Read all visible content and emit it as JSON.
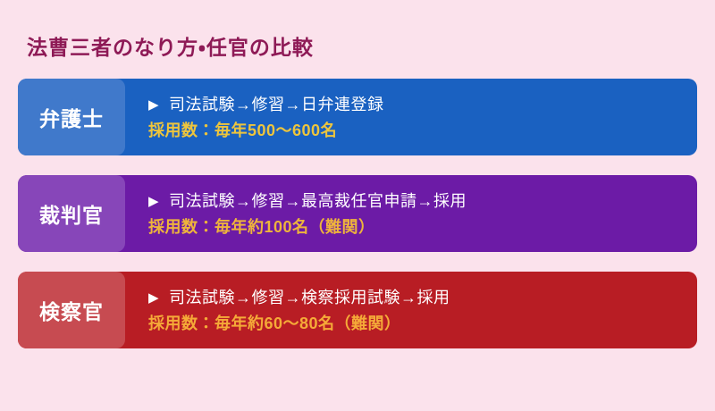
{
  "page": {
    "title": "法曹三者のなり方・任官の比較",
    "background_color": "#fbe2ec",
    "title_color": "#8e1a56"
  },
  "icons": {
    "bullet": "▶"
  },
  "rows": [
    {
      "label": "弁護士",
      "route": "司法試験→修習→日弁連登録",
      "recruits": "採用数：毎年500〜600名",
      "color": "#1a61c1",
      "label_color": "#4079cb",
      "recruits_color": "#edc53d"
    },
    {
      "label": "裁判官",
      "route": "司法試験→修習→最高裁任官申請→採用",
      "recruits": "採用数：毎年約100名（難関）",
      "color": "#6c1ba6",
      "label_color": "#8746b9",
      "recruits_color": "#eeb43c"
    },
    {
      "label": "検察官",
      "route": "司法試験→修習→検察採用試験→採用",
      "recruits": "採用数：毎年約60〜80名（難関）",
      "color": "#b81d24",
      "label_color": "#c74b51",
      "recruits_color": "#f5aa38"
    }
  ]
}
